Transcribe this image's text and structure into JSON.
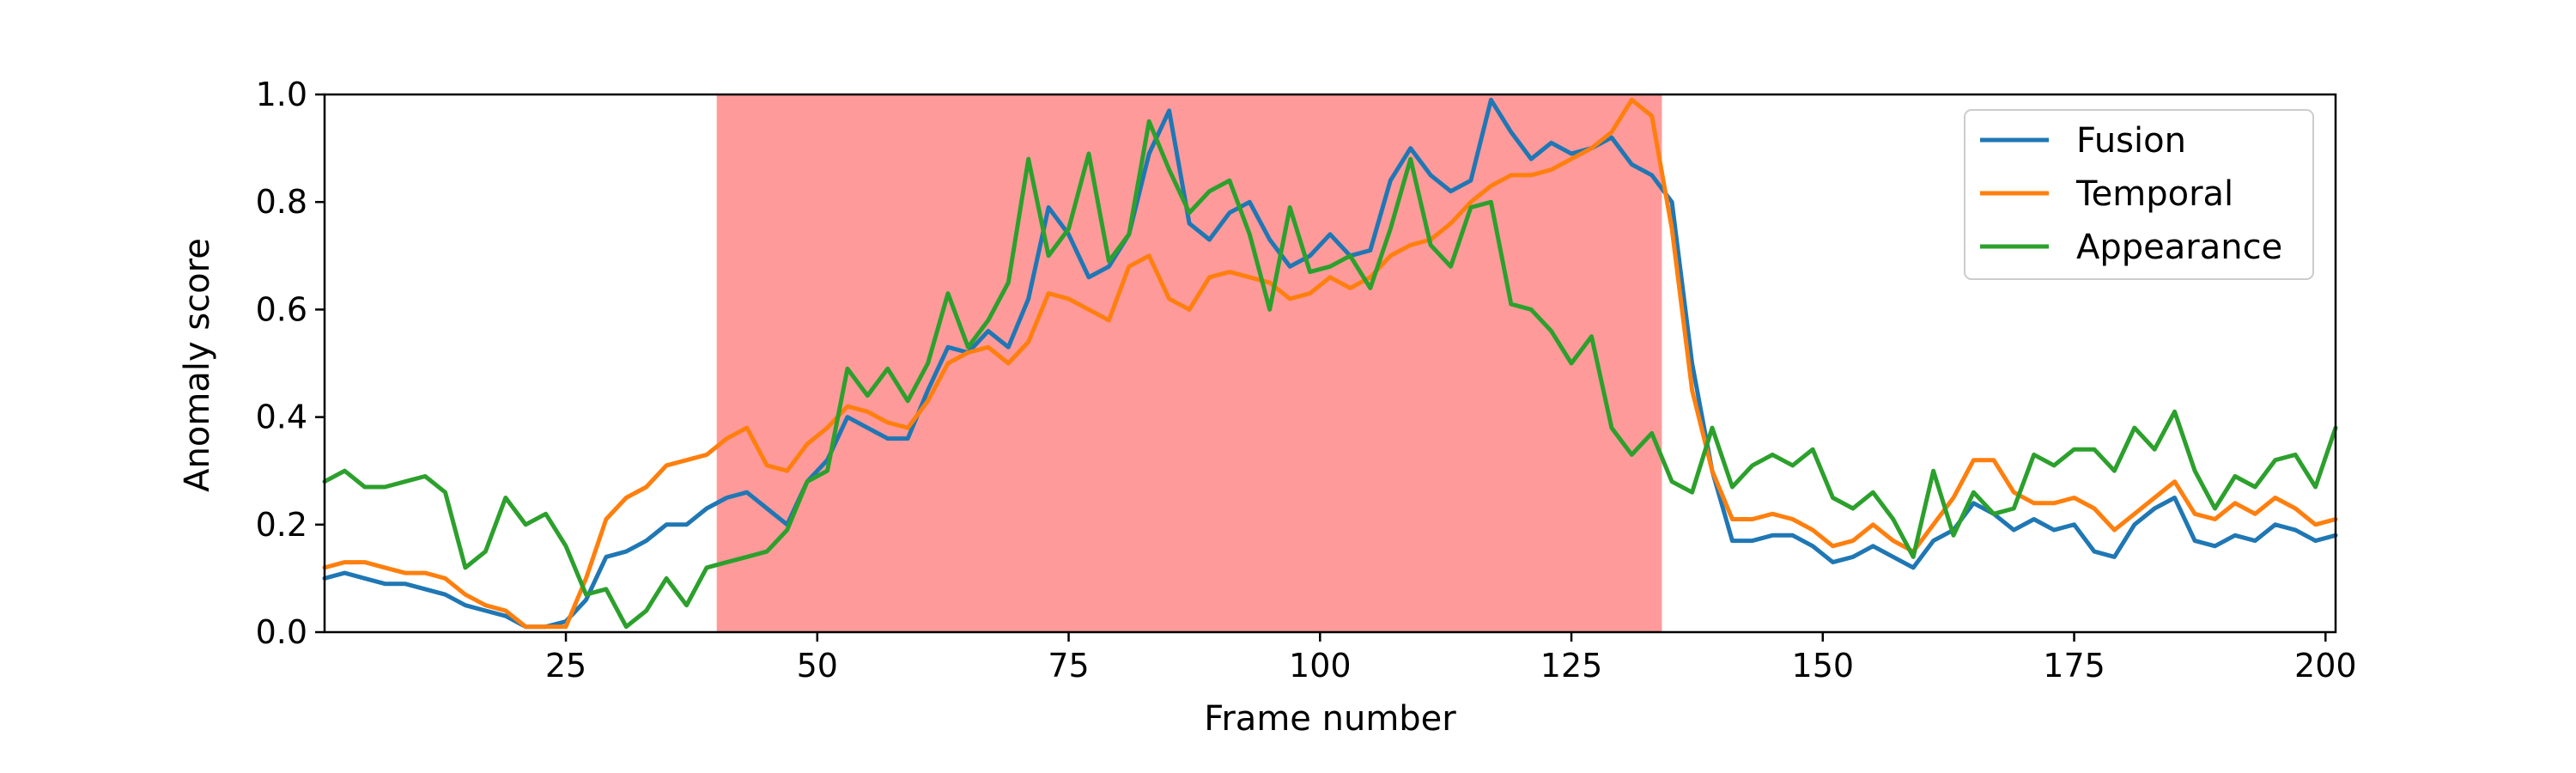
{
  "chart_data": {
    "type": "line",
    "title": "",
    "xlabel": "Frame number",
    "ylabel": "Anomaly score",
    "xlim": [
      1,
      201
    ],
    "ylim": [
      0.0,
      1.0
    ],
    "xticks": [
      25,
      50,
      75,
      100,
      125,
      150,
      175,
      200
    ],
    "yticks": [
      0.0,
      0.2,
      0.4,
      0.6,
      0.8,
      1.0
    ],
    "xtick_labels": [
      "25",
      "50",
      "75",
      "100",
      "125",
      "150",
      "175",
      "200"
    ],
    "ytick_labels": [
      "0.0",
      "0.2",
      "0.4",
      "0.6",
      "0.8",
      "1.0"
    ],
    "grid": false,
    "legend_position": "top-right",
    "shaded_region": {
      "x_start": 40,
      "x_end": 134,
      "color": "#ff9a9a"
    },
    "series": [
      {
        "name": "Fusion",
        "color": "#1f77b4",
        "x": [
          1,
          3,
          5,
          7,
          9,
          11,
          13,
          15,
          17,
          19,
          21,
          23,
          25,
          27,
          29,
          31,
          33,
          35,
          37,
          39,
          41,
          43,
          45,
          47,
          49,
          51,
          53,
          55,
          57,
          59,
          61,
          63,
          65,
          67,
          69,
          71,
          73,
          75,
          77,
          79,
          81,
          83,
          85,
          87,
          89,
          91,
          93,
          95,
          97,
          99,
          101,
          103,
          105,
          107,
          109,
          111,
          113,
          115,
          117,
          119,
          121,
          123,
          125,
          127,
          129,
          131,
          133,
          135,
          137,
          139,
          141,
          143,
          145,
          147,
          149,
          151,
          153,
          155,
          157,
          159,
          161,
          163,
          165,
          167,
          169,
          171,
          173,
          175,
          177,
          179,
          181,
          183,
          185,
          187,
          189,
          191,
          193,
          195,
          197,
          199,
          201
        ],
        "values": [
          0.1,
          0.11,
          0.1,
          0.09,
          0.09,
          0.08,
          0.07,
          0.05,
          0.04,
          0.03,
          0.01,
          0.01,
          0.02,
          0.06,
          0.14,
          0.15,
          0.17,
          0.2,
          0.2,
          0.23,
          0.25,
          0.26,
          0.23,
          0.2,
          0.28,
          0.32,
          0.4,
          0.38,
          0.36,
          0.36,
          0.45,
          0.53,
          0.52,
          0.56,
          0.53,
          0.62,
          0.79,
          0.74,
          0.66,
          0.68,
          0.74,
          0.89,
          0.97,
          0.76,
          0.73,
          0.78,
          0.8,
          0.73,
          0.68,
          0.7,
          0.74,
          0.7,
          0.71,
          0.84,
          0.9,
          0.85,
          0.82,
          0.84,
          0.99,
          0.93,
          0.88,
          0.91,
          0.89,
          0.9,
          0.92,
          0.87,
          0.85,
          0.8,
          0.5,
          0.3,
          0.17,
          0.17,
          0.18,
          0.18,
          0.16,
          0.13,
          0.14,
          0.16,
          0.14,
          0.12,
          0.17,
          0.19,
          0.24,
          0.22,
          0.19,
          0.21,
          0.19,
          0.2,
          0.15,
          0.14,
          0.2,
          0.23,
          0.25,
          0.17,
          0.16,
          0.18,
          0.17,
          0.2,
          0.19,
          0.17,
          0.18
        ]
      },
      {
        "name": "Temporal",
        "color": "#ff7f0e",
        "x": [
          1,
          3,
          5,
          7,
          9,
          11,
          13,
          15,
          17,
          19,
          21,
          23,
          25,
          27,
          29,
          31,
          33,
          35,
          37,
          39,
          41,
          43,
          45,
          47,
          49,
          51,
          53,
          55,
          57,
          59,
          61,
          63,
          65,
          67,
          69,
          71,
          73,
          75,
          77,
          79,
          81,
          83,
          85,
          87,
          89,
          91,
          93,
          95,
          97,
          99,
          101,
          103,
          105,
          107,
          109,
          111,
          113,
          115,
          117,
          119,
          121,
          123,
          125,
          127,
          129,
          131,
          133,
          135,
          137,
          139,
          141,
          143,
          145,
          147,
          149,
          151,
          153,
          155,
          157,
          159,
          161,
          163,
          165,
          167,
          169,
          171,
          173,
          175,
          177,
          179,
          181,
          183,
          185,
          187,
          189,
          191,
          193,
          195,
          197,
          199,
          201
        ],
        "values": [
          0.12,
          0.13,
          0.13,
          0.12,
          0.11,
          0.11,
          0.1,
          0.07,
          0.05,
          0.04,
          0.01,
          0.01,
          0.01,
          0.1,
          0.21,
          0.25,
          0.27,
          0.31,
          0.32,
          0.33,
          0.36,
          0.38,
          0.31,
          0.3,
          0.35,
          0.38,
          0.42,
          0.41,
          0.39,
          0.38,
          0.43,
          0.5,
          0.52,
          0.53,
          0.5,
          0.54,
          0.63,
          0.62,
          0.6,
          0.58,
          0.68,
          0.7,
          0.62,
          0.6,
          0.66,
          0.67,
          0.66,
          0.65,
          0.62,
          0.63,
          0.66,
          0.64,
          0.66,
          0.7,
          0.72,
          0.73,
          0.76,
          0.8,
          0.83,
          0.85,
          0.85,
          0.86,
          0.88,
          0.9,
          0.93,
          0.99,
          0.96,
          0.75,
          0.45,
          0.3,
          0.21,
          0.21,
          0.22,
          0.21,
          0.19,
          0.16,
          0.17,
          0.2,
          0.17,
          0.15,
          0.2,
          0.25,
          0.32,
          0.32,
          0.26,
          0.24,
          0.24,
          0.25,
          0.23,
          0.19,
          0.22,
          0.25,
          0.28,
          0.22,
          0.21,
          0.24,
          0.22,
          0.25,
          0.23,
          0.2,
          0.21
        ]
      },
      {
        "name": "Appearance",
        "color": "#2ca02c",
        "x": [
          1,
          3,
          5,
          7,
          9,
          11,
          13,
          15,
          17,
          19,
          21,
          23,
          25,
          27,
          29,
          31,
          33,
          35,
          37,
          39,
          41,
          43,
          45,
          47,
          49,
          51,
          53,
          55,
          57,
          59,
          61,
          63,
          65,
          67,
          69,
          71,
          73,
          75,
          77,
          79,
          81,
          83,
          85,
          87,
          89,
          91,
          93,
          95,
          97,
          99,
          101,
          103,
          105,
          107,
          109,
          111,
          113,
          115,
          117,
          119,
          121,
          123,
          125,
          127,
          129,
          131,
          133,
          135,
          137,
          139,
          141,
          143,
          145,
          147,
          149,
          151,
          153,
          155,
          157,
          159,
          161,
          163,
          165,
          167,
          169,
          171,
          173,
          175,
          177,
          179,
          181,
          183,
          185,
          187,
          189,
          191,
          193,
          195,
          197,
          199,
          201
        ],
        "values": [
          0.28,
          0.3,
          0.27,
          0.27,
          0.28,
          0.29,
          0.26,
          0.12,
          0.15,
          0.25,
          0.2,
          0.22,
          0.16,
          0.07,
          0.08,
          0.01,
          0.04,
          0.1,
          0.05,
          0.12,
          0.13,
          0.14,
          0.15,
          0.19,
          0.28,
          0.3,
          0.49,
          0.44,
          0.49,
          0.43,
          0.5,
          0.63,
          0.53,
          0.58,
          0.65,
          0.88,
          0.7,
          0.75,
          0.89,
          0.69,
          0.74,
          0.95,
          0.86,
          0.78,
          0.82,
          0.84,
          0.74,
          0.6,
          0.79,
          0.67,
          0.68,
          0.7,
          0.64,
          0.75,
          0.88,
          0.72,
          0.68,
          0.79,
          0.8,
          0.61,
          0.6,
          0.56,
          0.5,
          0.55,
          0.38,
          0.33,
          0.37,
          0.28,
          0.26,
          0.38,
          0.27,
          0.31,
          0.33,
          0.31,
          0.34,
          0.25,
          0.23,
          0.26,
          0.21,
          0.14,
          0.3,
          0.18,
          0.26,
          0.22,
          0.23,
          0.33,
          0.31,
          0.34,
          0.34,
          0.3,
          0.38,
          0.34,
          0.41,
          0.3,
          0.23,
          0.29,
          0.27,
          0.32,
          0.33,
          0.27,
          0.38
        ]
      }
    ]
  }
}
